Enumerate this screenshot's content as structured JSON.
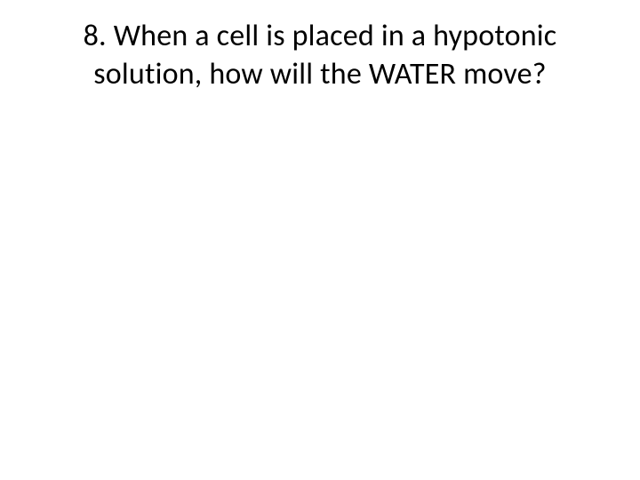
{
  "slide": {
    "question_line1": "8.  When a cell is placed in a hypotonic",
    "question_line2": "solution, how will the WATER move?",
    "background_color": "#ffffff",
    "text_color": "#000000",
    "font_family": "Calibri",
    "font_size_pt": 32,
    "font_weight": 400,
    "text_align": "center"
  }
}
